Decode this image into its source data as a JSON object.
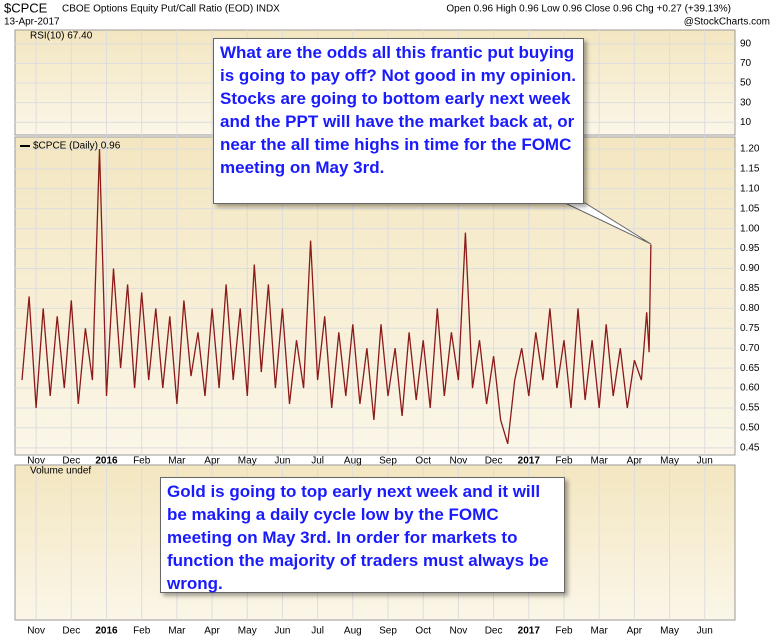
{
  "chart_data": {
    "type": "line",
    "title": "$CPCE",
    "subtitle": "CBOE Options Equity Put/Call Ratio (EOD) INDX",
    "date": "13-Apr-2017",
    "quote": "Open 0.96 High 0.96 Low 0.96 Close 0.96 Chg +0.27 (+39.13%)",
    "source": "@StockCharts.com",
    "rsi": {
      "label": "RSI(10) 67.40",
      "ylim": [
        -3,
        104
      ],
      "yticks": [
        90,
        70,
        50,
        30,
        10
      ]
    },
    "volume": {
      "label": "Volume undef"
    },
    "annotations": [
      "What are the odds all this frantic put buying is going to pay off? Not good in my opinion. Stocks are going to bottom early next week and the PPT will have the market back at, or near the all time highs in time for the FOMC meeting on May 3rd.",
      "Gold is going to top early next week and it will be making a daily cycle low by the FOMC meeting on May 3rd. In order for markets to function the majority of traders must always be wrong."
    ],
    "x": [
      0.6,
      0.8,
      1,
      1.2,
      1.4,
      1.6,
      1.8,
      2,
      2.2,
      2.4,
      2.6,
      2.8,
      3,
      3.2,
      3.4,
      3.6,
      3.8,
      4,
      4.2,
      4.4,
      4.6,
      4.8,
      5,
      5.2,
      5.4,
      5.6,
      5.8,
      6,
      6.2,
      6.4,
      6.6,
      6.8,
      7,
      7.2,
      7.4,
      7.6,
      7.8,
      8,
      8.2,
      8.4,
      8.6,
      8.8,
      9,
      9.2,
      9.4,
      9.6,
      9.8,
      10,
      10.2,
      10.4,
      10.6,
      10.8,
      11,
      11.2,
      11.4,
      11.6,
      11.8,
      12,
      12.2,
      12.4,
      12.6,
      12.8,
      13,
      13.2,
      13.4,
      13.6,
      13.8,
      14,
      14.2,
      14.4,
      14.6,
      14.8,
      15,
      15.2,
      15.4,
      15.6,
      15.8,
      16,
      16.2,
      16.4,
      16.6,
      16.8,
      17,
      17.2,
      17.4,
      17.6,
      17.8,
      18,
      18.2,
      18.35,
      18.42,
      18.47
    ],
    "series": [
      {
        "name": "$CPCE (Daily) 0.96",
        "color": "#8b1a1a",
        "values": [
          0.62,
          0.83,
          0.55,
          0.8,
          0.58,
          0.78,
          0.6,
          0.82,
          0.56,
          0.75,
          0.62,
          1.2,
          0.58,
          0.9,
          0.65,
          0.86,
          0.6,
          0.84,
          0.62,
          0.8,
          0.6,
          0.78,
          0.56,
          0.82,
          0.63,
          0.74,
          0.58,
          0.8,
          0.6,
          0.86,
          0.62,
          0.8,
          0.58,
          0.91,
          0.64,
          0.86,
          0.6,
          0.8,
          0.56,
          0.72,
          0.6,
          0.97,
          0.62,
          0.78,
          0.55,
          0.74,
          0.58,
          0.76,
          0.56,
          0.7,
          0.52,
          0.76,
          0.58,
          0.7,
          0.53,
          0.74,
          0.57,
          0.72,
          0.55,
          0.8,
          0.58,
          0.74,
          0.62,
          0.99,
          0.6,
          0.72,
          0.56,
          0.68,
          0.52,
          0.46,
          0.62,
          0.7,
          0.58,
          0.74,
          0.62,
          0.8,
          0.6,
          0.72,
          0.55,
          0.8,
          0.57,
          0.72,
          0.55,
          0.76,
          0.58,
          0.7,
          0.55,
          0.67,
          0.62,
          0.79,
          0.69,
          0.96
        ]
      }
    ],
    "xlim": [
      0.4,
      20.86
    ],
    "xticks": [
      {
        "value": 1,
        "label": "Nov"
      },
      {
        "value": 2,
        "label": "Dec"
      },
      {
        "value": 3,
        "label": "2016"
      },
      {
        "value": 4,
        "label": "Feb"
      },
      {
        "value": 5,
        "label": "Mar"
      },
      {
        "value": 6,
        "label": "Apr"
      },
      {
        "value": 7,
        "label": "May"
      },
      {
        "value": 8,
        "label": "Jun"
      },
      {
        "value": 9,
        "label": "Jul"
      },
      {
        "value": 10,
        "label": "Aug"
      },
      {
        "value": 11,
        "label": "Sep"
      },
      {
        "value": 12,
        "label": "Oct"
      },
      {
        "value": 13,
        "label": "Nov"
      },
      {
        "value": 14,
        "label": "Dec"
      },
      {
        "value": 15,
        "label": "2017"
      },
      {
        "value": 16,
        "label": "Feb"
      },
      {
        "value": 17,
        "label": "Mar"
      },
      {
        "value": 18,
        "label": "Apr"
      },
      {
        "value": 19,
        "label": "May"
      },
      {
        "value": 20,
        "label": "Jun"
      }
    ],
    "ylim": [
      0.432,
      1.23
    ],
    "yticks": [
      0.45,
      {
        "value": 0.5,
        "label": "0.50"
      },
      0.55,
      {
        "value": 0.6,
        "label": "0.60"
      },
      0.65,
      {
        "value": 0.7,
        "label": "0.70"
      },
      0.75,
      {
        "value": 0.8,
        "label": "0.80"
      },
      0.85,
      {
        "value": 0.9,
        "label": "0.90"
      },
      0.95,
      {
        "value": 1,
        "label": "1.00"
      },
      1.05,
      {
        "value": 1.1,
        "label": "1.10"
      },
      1.15,
      {
        "value": 1.2,
        "label": "1.20"
      }
    ],
    "grid": true
  }
}
